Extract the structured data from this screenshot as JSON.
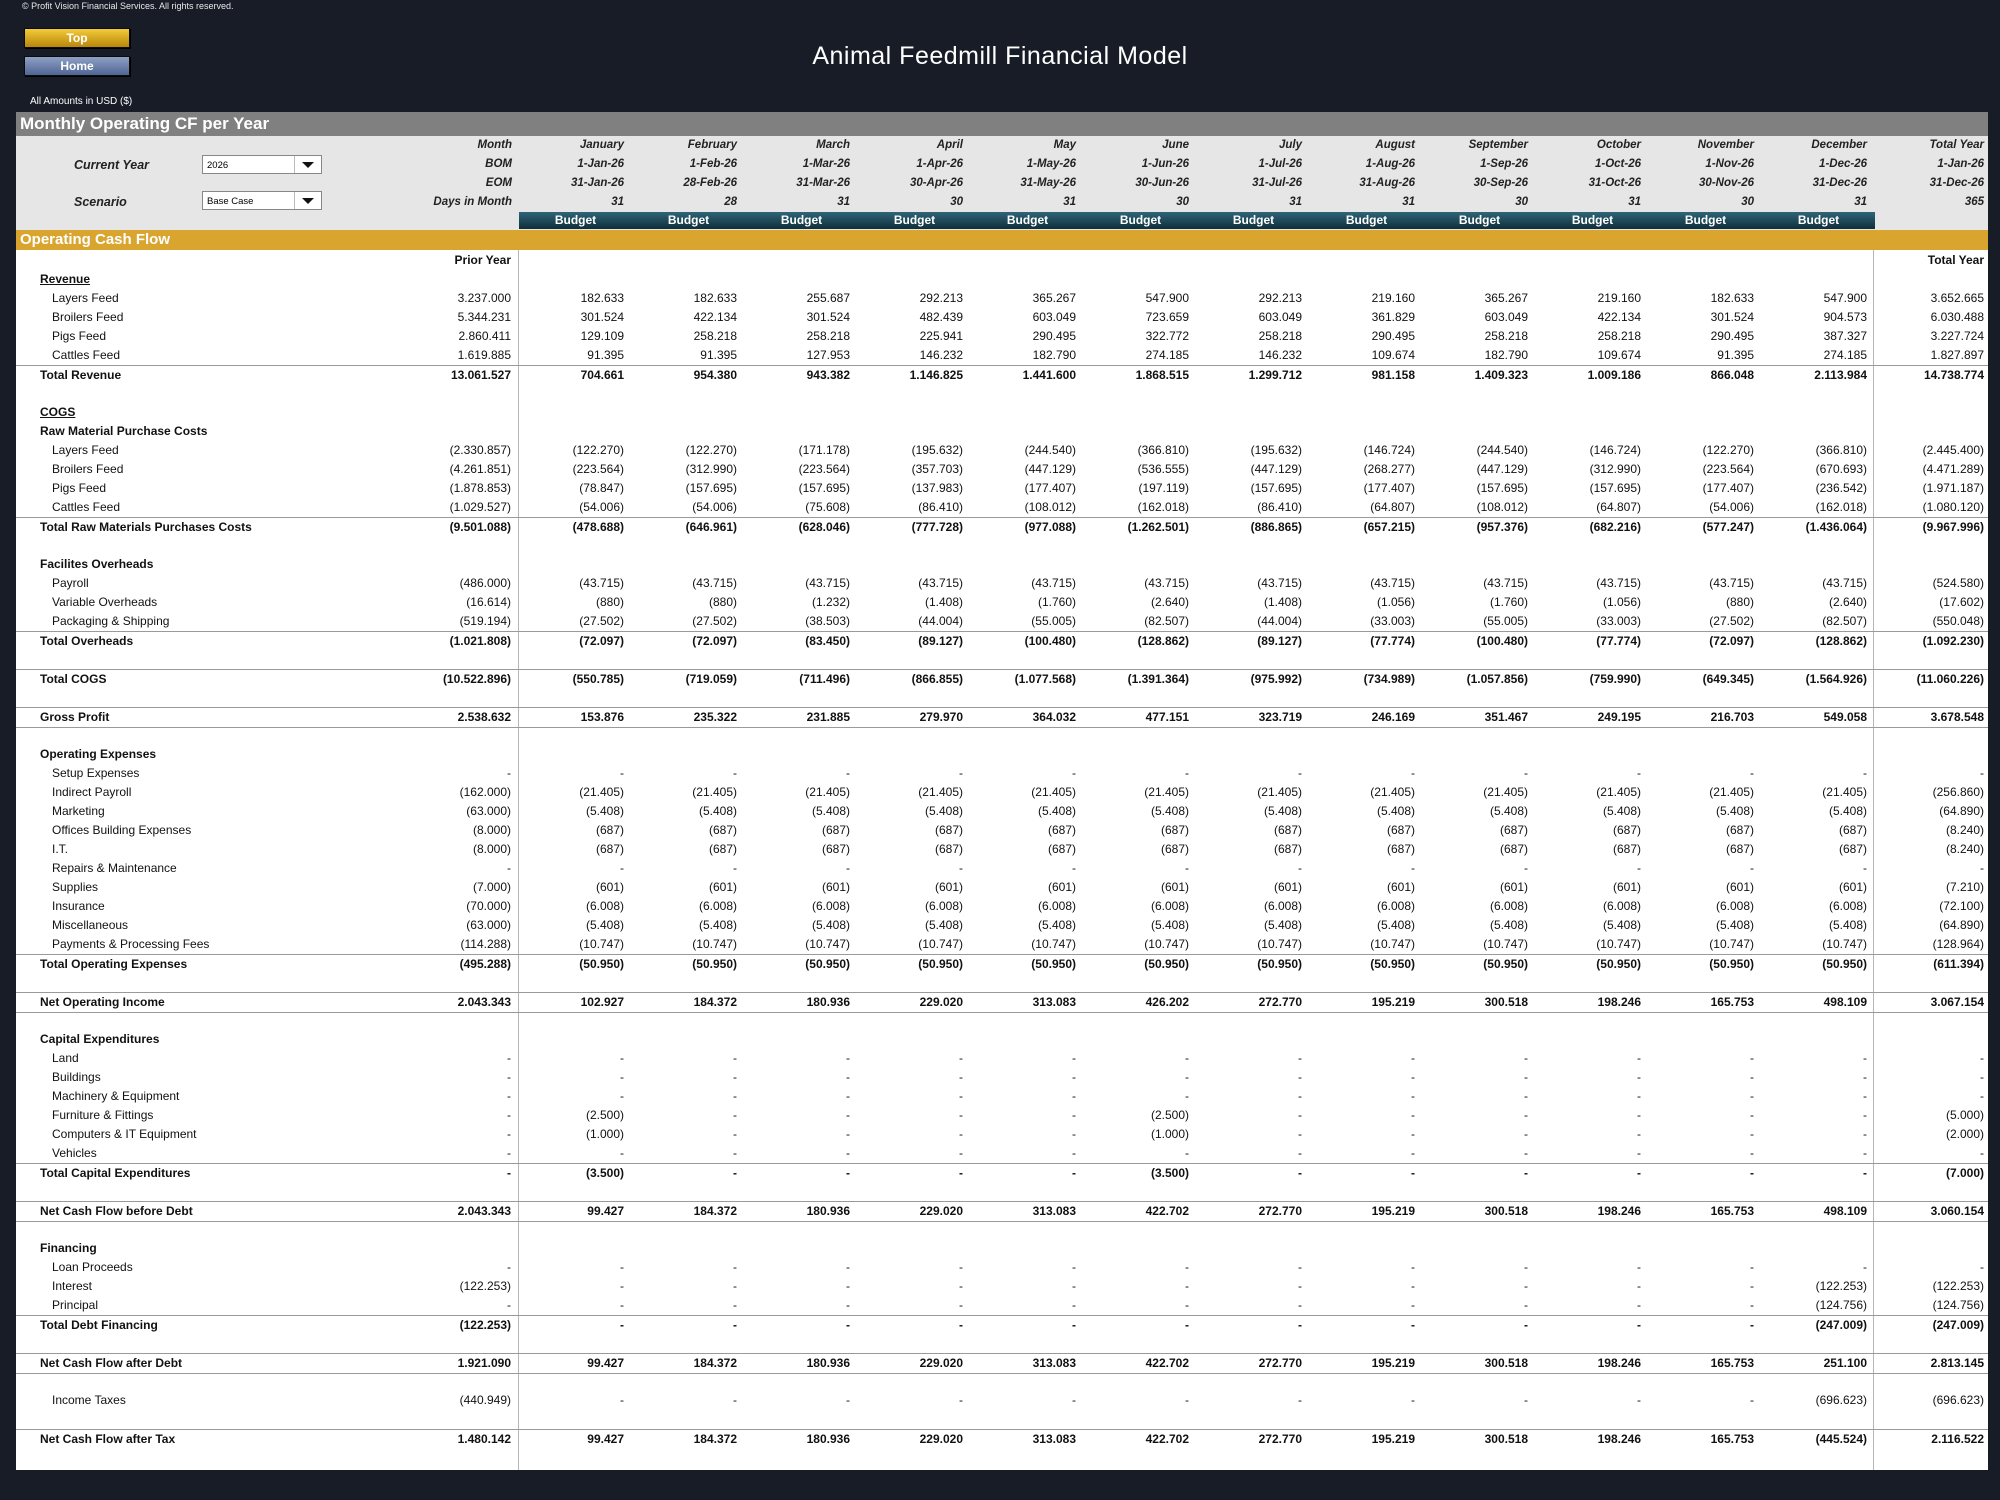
{
  "copyright": "© Profit Vision Financial Services. All rights reserved.",
  "nav": {
    "top_label": "Top",
    "home_label": "Home"
  },
  "title": "Animal Feedmill Financial Model",
  "amounts_note": "All Amounts in  USD ($)",
  "section_title": "Monthly Operating CF per Year",
  "controls": {
    "current_year_label": "Current Year",
    "current_year_value": "2026",
    "scenario_label": "Scenario",
    "scenario_value": "Base Case"
  },
  "header_labels": {
    "month": "Month",
    "bom": "BOM",
    "eom": "EOM",
    "days": "Days in Month"
  },
  "months": [
    {
      "name": "January",
      "bom": "1-Jan-26",
      "eom": "31-Jan-26",
      "days": "31"
    },
    {
      "name": "February",
      "bom": "1-Feb-26",
      "eom": "28-Feb-26",
      "days": "28"
    },
    {
      "name": "March",
      "bom": "1-Mar-26",
      "eom": "31-Mar-26",
      "days": "31"
    },
    {
      "name": "April",
      "bom": "1-Apr-26",
      "eom": "30-Apr-26",
      "days": "30"
    },
    {
      "name": "May",
      "bom": "1-May-26",
      "eom": "31-May-26",
      "days": "31"
    },
    {
      "name": "June",
      "bom": "1-Jun-26",
      "eom": "30-Jun-26",
      "days": "30"
    },
    {
      "name": "July",
      "bom": "1-Jul-26",
      "eom": "31-Jul-26",
      "days": "31"
    },
    {
      "name": "August",
      "bom": "1-Aug-26",
      "eom": "31-Aug-26",
      "days": "31"
    },
    {
      "name": "September",
      "bom": "1-Sep-26",
      "eom": "30-Sep-26",
      "days": "30"
    },
    {
      "name": "October",
      "bom": "1-Oct-26",
      "eom": "31-Oct-26",
      "days": "31"
    },
    {
      "name": "November",
      "bom": "1-Nov-26",
      "eom": "30-Nov-26",
      "days": "30"
    },
    {
      "name": "December",
      "bom": "1-Dec-26",
      "eom": "31-Dec-26",
      "days": "31"
    }
  ],
  "total_year_header": {
    "name": "Total Year",
    "bom": "1-Jan-26",
    "eom": "31-Dec-26",
    "days": "365"
  },
  "budget_label": "Budget",
  "cf_section_title": "Operating Cash Flow",
  "prior_year_label": "Prior Year",
  "total_year_label": "Total Year",
  "rows": [
    {
      "label": "Revenue",
      "style": "ul"
    },
    {
      "label": "Layers Feed",
      "style": "ind",
      "vals": [
        "3.237.000",
        "182.633",
        "182.633",
        "255.687",
        "292.213",
        "365.267",
        "547.900",
        "292.213",
        "219.160",
        "365.267",
        "219.160",
        "182.633",
        "547.900",
        "3.652.665"
      ]
    },
    {
      "label": "Broilers Feed",
      "style": "ind",
      "vals": [
        "5.344.231",
        "301.524",
        "422.134",
        "301.524",
        "482.439",
        "603.049",
        "723.659",
        "603.049",
        "361.829",
        "603.049",
        "422.134",
        "301.524",
        "904.573",
        "6.030.488"
      ]
    },
    {
      "label": "Pigs Feed",
      "style": "ind",
      "vals": [
        "2.860.411",
        "129.109",
        "258.218",
        "258.218",
        "225.941",
        "290.495",
        "322.772",
        "258.218",
        "290.495",
        "258.218",
        "258.218",
        "290.495",
        "387.327",
        "3.227.724"
      ]
    },
    {
      "label": "Cattles Feed",
      "style": "ind",
      "vals": [
        "1.619.885",
        "91.395",
        "91.395",
        "127.953",
        "146.232",
        "182.790",
        "274.185",
        "146.232",
        "109.674",
        "182.790",
        "109.674",
        "91.395",
        "274.185",
        "1.827.897"
      ]
    },
    {
      "label": "Total Revenue",
      "style": "total",
      "vals": [
        "13.061.527",
        "704.661",
        "954.380",
        "943.382",
        "1.146.825",
        "1.441.600",
        "1.868.515",
        "1.299.712",
        "981.158",
        "1.409.323",
        "1.009.186",
        "866.048",
        "2.113.984",
        "14.738.774"
      ]
    },
    {
      "label": "",
      "style": "blank"
    },
    {
      "label": "COGS",
      "style": "ul"
    },
    {
      "label": "Raw Material Purchase Costs",
      "style": "bold"
    },
    {
      "label": "Layers Feed",
      "style": "ind",
      "vals": [
        "(2.330.857)",
        "(122.270)",
        "(122.270)",
        "(171.178)",
        "(195.632)",
        "(244.540)",
        "(366.810)",
        "(195.632)",
        "(146.724)",
        "(244.540)",
        "(146.724)",
        "(122.270)",
        "(366.810)",
        "(2.445.400)"
      ]
    },
    {
      "label": "Broilers Feed",
      "style": "ind",
      "vals": [
        "(4.261.851)",
        "(223.564)",
        "(312.990)",
        "(223.564)",
        "(357.703)",
        "(447.129)",
        "(536.555)",
        "(447.129)",
        "(268.277)",
        "(447.129)",
        "(312.990)",
        "(223.564)",
        "(670.693)",
        "(4.471.289)"
      ]
    },
    {
      "label": "Pigs Feed",
      "style": "ind",
      "vals": [
        "(1.878.853)",
        "(78.847)",
        "(157.695)",
        "(157.695)",
        "(137.983)",
        "(177.407)",
        "(197.119)",
        "(157.695)",
        "(177.407)",
        "(157.695)",
        "(157.695)",
        "(177.407)",
        "(236.542)",
        "(1.971.187)"
      ]
    },
    {
      "label": "Cattles Feed",
      "style": "ind",
      "vals": [
        "(1.029.527)",
        "(54.006)",
        "(54.006)",
        "(75.608)",
        "(86.410)",
        "(108.012)",
        "(162.018)",
        "(86.410)",
        "(64.807)",
        "(108.012)",
        "(64.807)",
        "(54.006)",
        "(162.018)",
        "(1.080.120)"
      ]
    },
    {
      "label": "Total Raw Materials Purchases Costs",
      "style": "total",
      "vals": [
        "(9.501.088)",
        "(478.688)",
        "(646.961)",
        "(628.046)",
        "(777.728)",
        "(977.088)",
        "(1.262.501)",
        "(886.865)",
        "(657.215)",
        "(957.376)",
        "(682.216)",
        "(577.247)",
        "(1.436.064)",
        "(9.967.996)"
      ]
    },
    {
      "label": "",
      "style": "blank"
    },
    {
      "label": "Facilites Overheads",
      "style": "bold"
    },
    {
      "label": "Payroll",
      "style": "ind",
      "vals": [
        "(486.000)",
        "(43.715)",
        "(43.715)",
        "(43.715)",
        "(43.715)",
        "(43.715)",
        "(43.715)",
        "(43.715)",
        "(43.715)",
        "(43.715)",
        "(43.715)",
        "(43.715)",
        "(43.715)",
        "(524.580)"
      ]
    },
    {
      "label": "Variable Overheads",
      "style": "ind",
      "vals": [
        "(16.614)",
        "(880)",
        "(880)",
        "(1.232)",
        "(1.408)",
        "(1.760)",
        "(2.640)",
        "(1.408)",
        "(1.056)",
        "(1.760)",
        "(1.056)",
        "(880)",
        "(2.640)",
        "(17.602)"
      ]
    },
    {
      "label": "Packaging & Shipping",
      "style": "ind",
      "vals": [
        "(519.194)",
        "(27.502)",
        "(27.502)",
        "(38.503)",
        "(44.004)",
        "(55.005)",
        "(82.507)",
        "(44.004)",
        "(33.003)",
        "(55.005)",
        "(33.003)",
        "(27.502)",
        "(82.507)",
        "(550.048)"
      ]
    },
    {
      "label": "Total Overheads",
      "style": "total",
      "vals": [
        "(1.021.808)",
        "(72.097)",
        "(72.097)",
        "(83.450)",
        "(89.127)",
        "(100.480)",
        "(128.862)",
        "(89.127)",
        "(77.774)",
        "(100.480)",
        "(77.774)",
        "(72.097)",
        "(128.862)",
        "(1.092.230)"
      ]
    },
    {
      "label": "",
      "style": "blank"
    },
    {
      "label": "Total COGS",
      "style": "total",
      "vals": [
        "(10.522.896)",
        "(550.785)",
        "(719.059)",
        "(711.496)",
        "(866.855)",
        "(1.077.568)",
        "(1.391.364)",
        "(975.992)",
        "(734.989)",
        "(1.057.856)",
        "(759.990)",
        "(649.345)",
        "(1.564.926)",
        "(11.060.226)"
      ]
    },
    {
      "label": "",
      "style": "blank"
    },
    {
      "label": "Gross Profit",
      "style": "total2",
      "vals": [
        "2.538.632",
        "153.876",
        "235.322",
        "231.885",
        "279.970",
        "364.032",
        "477.151",
        "323.719",
        "246.169",
        "351.467",
        "249.195",
        "216.703",
        "549.058",
        "3.678.548"
      ]
    },
    {
      "label": "",
      "style": "blank"
    },
    {
      "label": "Operating Expenses",
      "style": "bold"
    },
    {
      "label": "Setup Expenses",
      "style": "ind",
      "vals": [
        "-",
        "-",
        "-",
        "-",
        "-",
        "-",
        "-",
        "-",
        "-",
        "-",
        "-",
        "-",
        "-",
        "-"
      ]
    },
    {
      "label": "Indirect Payroll",
      "style": "ind",
      "vals": [
        "(162.000)",
        "(21.405)",
        "(21.405)",
        "(21.405)",
        "(21.405)",
        "(21.405)",
        "(21.405)",
        "(21.405)",
        "(21.405)",
        "(21.405)",
        "(21.405)",
        "(21.405)",
        "(21.405)",
        "(256.860)"
      ]
    },
    {
      "label": "Marketing",
      "style": "ind",
      "vals": [
        "(63.000)",
        "(5.408)",
        "(5.408)",
        "(5.408)",
        "(5.408)",
        "(5.408)",
        "(5.408)",
        "(5.408)",
        "(5.408)",
        "(5.408)",
        "(5.408)",
        "(5.408)",
        "(5.408)",
        "(64.890)"
      ]
    },
    {
      "label": "Offices Building Expenses",
      "style": "ind",
      "vals": [
        "(8.000)",
        "(687)",
        "(687)",
        "(687)",
        "(687)",
        "(687)",
        "(687)",
        "(687)",
        "(687)",
        "(687)",
        "(687)",
        "(687)",
        "(687)",
        "(8.240)"
      ]
    },
    {
      "label": "I.T.",
      "style": "ind",
      "vals": [
        "(8.000)",
        "(687)",
        "(687)",
        "(687)",
        "(687)",
        "(687)",
        "(687)",
        "(687)",
        "(687)",
        "(687)",
        "(687)",
        "(687)",
        "(687)",
        "(8.240)"
      ]
    },
    {
      "label": "Repairs & Maintenance",
      "style": "ind",
      "vals": [
        "-",
        "-",
        "-",
        "-",
        "-",
        "-",
        "-",
        "-",
        "-",
        "-",
        "-",
        "-",
        "-",
        "-"
      ]
    },
    {
      "label": "Supplies",
      "style": "ind",
      "vals": [
        "(7.000)",
        "(601)",
        "(601)",
        "(601)",
        "(601)",
        "(601)",
        "(601)",
        "(601)",
        "(601)",
        "(601)",
        "(601)",
        "(601)",
        "(601)",
        "(7.210)"
      ]
    },
    {
      "label": "Insurance",
      "style": "ind",
      "vals": [
        "(70.000)",
        "(6.008)",
        "(6.008)",
        "(6.008)",
        "(6.008)",
        "(6.008)",
        "(6.008)",
        "(6.008)",
        "(6.008)",
        "(6.008)",
        "(6.008)",
        "(6.008)",
        "(6.008)",
        "(72.100)"
      ]
    },
    {
      "label": "Miscellaneous",
      "style": "ind",
      "vals": [
        "(63.000)",
        "(5.408)",
        "(5.408)",
        "(5.408)",
        "(5.408)",
        "(5.408)",
        "(5.408)",
        "(5.408)",
        "(5.408)",
        "(5.408)",
        "(5.408)",
        "(5.408)",
        "(5.408)",
        "(64.890)"
      ]
    },
    {
      "label": "Payments & Processing Fees",
      "style": "ind",
      "vals": [
        "(114.288)",
        "(10.747)",
        "(10.747)",
        "(10.747)",
        "(10.747)",
        "(10.747)",
        "(10.747)",
        "(10.747)",
        "(10.747)",
        "(10.747)",
        "(10.747)",
        "(10.747)",
        "(10.747)",
        "(128.964)"
      ]
    },
    {
      "label": "Total Operating Expenses",
      "style": "total",
      "vals": [
        "(495.288)",
        "(50.950)",
        "(50.950)",
        "(50.950)",
        "(50.950)",
        "(50.950)",
        "(50.950)",
        "(50.950)",
        "(50.950)",
        "(50.950)",
        "(50.950)",
        "(50.950)",
        "(50.950)",
        "(611.394)"
      ]
    },
    {
      "label": "",
      "style": "blank"
    },
    {
      "label": "Net Operating Income",
      "style": "total2",
      "vals": [
        "2.043.343",
        "102.927",
        "184.372",
        "180.936",
        "229.020",
        "313.083",
        "426.202",
        "272.770",
        "195.219",
        "300.518",
        "198.246",
        "165.753",
        "498.109",
        "3.067.154"
      ]
    },
    {
      "label": "",
      "style": "blank"
    },
    {
      "label": "Capital Expenditures",
      "style": "bold"
    },
    {
      "label": "Land",
      "style": "ind",
      "vals": [
        "-",
        "-",
        "-",
        "-",
        "-",
        "-",
        "-",
        "-",
        "-",
        "-",
        "-",
        "-",
        "-",
        "-"
      ]
    },
    {
      "label": "Buildings",
      "style": "ind",
      "vals": [
        "-",
        "-",
        "-",
        "-",
        "-",
        "-",
        "-",
        "-",
        "-",
        "-",
        "-",
        "-",
        "-",
        "-"
      ]
    },
    {
      "label": "Machinery & Equipment",
      "style": "ind",
      "vals": [
        "-",
        "-",
        "-",
        "-",
        "-",
        "-",
        "-",
        "-",
        "-",
        "-",
        "-",
        "-",
        "-",
        "-"
      ]
    },
    {
      "label": "Furniture & Fittings",
      "style": "ind",
      "vals": [
        "-",
        "(2.500)",
        "-",
        "-",
        "-",
        "-",
        "(2.500)",
        "-",
        "-",
        "-",
        "-",
        "-",
        "-",
        "(5.000)"
      ]
    },
    {
      "label": "Computers & IT Equipment",
      "style": "ind",
      "vals": [
        "-",
        "(1.000)",
        "-",
        "-",
        "-",
        "-",
        "(1.000)",
        "-",
        "-",
        "-",
        "-",
        "-",
        "-",
        "(2.000)"
      ]
    },
    {
      "label": "Vehicles",
      "style": "ind",
      "vals": [
        "-",
        "-",
        "-",
        "-",
        "-",
        "-",
        "-",
        "-",
        "-",
        "-",
        "-",
        "-",
        "-",
        "-"
      ]
    },
    {
      "label": "Total Capital Expenditures",
      "style": "total",
      "vals": [
        "-",
        "(3.500)",
        "-",
        "-",
        "-",
        "-",
        "(3.500)",
        "-",
        "-",
        "-",
        "-",
        "-",
        "-",
        "(7.000)"
      ]
    },
    {
      "label": "",
      "style": "blank"
    },
    {
      "label": "Net Cash Flow before Debt",
      "style": "total2",
      "vals": [
        "2.043.343",
        "99.427",
        "184.372",
        "180.936",
        "229.020",
        "313.083",
        "422.702",
        "272.770",
        "195.219",
        "300.518",
        "198.246",
        "165.753",
        "498.109",
        "3.060.154"
      ]
    },
    {
      "label": "",
      "style": "blank"
    },
    {
      "label": "Financing",
      "style": "bold"
    },
    {
      "label": "Loan Proceeds",
      "style": "ind",
      "vals": [
        "-",
        "-",
        "-",
        "-",
        "-",
        "-",
        "-",
        "-",
        "-",
        "-",
        "-",
        "-",
        "-",
        "-"
      ]
    },
    {
      "label": "Interest",
      "style": "ind",
      "vals": [
        "(122.253)",
        "-",
        "-",
        "-",
        "-",
        "-",
        "-",
        "-",
        "-",
        "-",
        "-",
        "-",
        "(122.253)",
        "(122.253)"
      ]
    },
    {
      "label": "Principal",
      "style": "ind",
      "vals": [
        "-",
        "-",
        "-",
        "-",
        "-",
        "-",
        "-",
        "-",
        "-",
        "-",
        "-",
        "-",
        "(124.756)",
        "(124.756)"
      ]
    },
    {
      "label": "Total Debt Financing",
      "style": "total",
      "vals": [
        "(122.253)",
        "-",
        "-",
        "-",
        "-",
        "-",
        "-",
        "-",
        "-",
        "-",
        "-",
        "-",
        "(247.009)",
        "(247.009)"
      ]
    },
    {
      "label": "",
      "style": "blank"
    },
    {
      "label": "Net Cash Flow after Debt",
      "style": "total2",
      "vals": [
        "1.921.090",
        "99.427",
        "184.372",
        "180.936",
        "229.020",
        "313.083",
        "422.702",
        "272.770",
        "195.219",
        "300.518",
        "198.246",
        "165.753",
        "251.100",
        "2.813.145"
      ]
    },
    {
      "label": "",
      "style": "blank"
    },
    {
      "label": "Income Taxes",
      "style": "ind",
      "vals": [
        "(440.949)",
        "-",
        "-",
        "-",
        "-",
        "-",
        "-",
        "-",
        "-",
        "-",
        "-",
        "-",
        "(696.623)",
        "(696.623)"
      ]
    },
    {
      "label": "",
      "style": "blank"
    },
    {
      "label": "Net Cash Flow after Tax",
      "style": "total",
      "vals": [
        "1.480.142",
        "99.427",
        "184.372",
        "180.936",
        "229.020",
        "313.083",
        "422.702",
        "272.770",
        "195.219",
        "300.518",
        "198.246",
        "165.753",
        "(445.524)",
        "2.116.522"
      ]
    }
  ]
}
